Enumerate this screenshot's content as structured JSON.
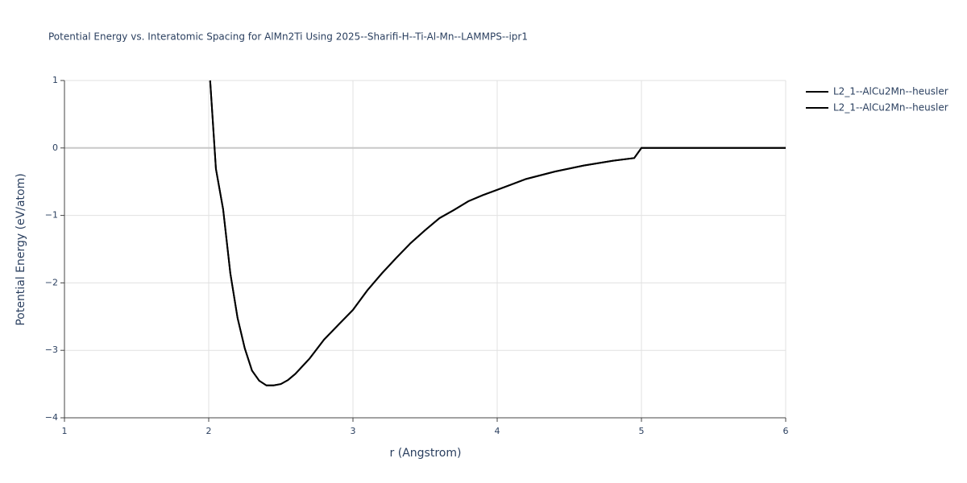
{
  "chart_data": {
    "type": "line",
    "title": "Potential Energy vs. Interatomic Spacing for AlMn2Ti Using 2025--Sharifi-H--Ti-Al-Mn--LAMMPS--ipr1",
    "x_label": "r (Angstrom)",
    "y_label": "Potential Energy (eV/atom)",
    "x": [
      2.01,
      2.05,
      2.1,
      2.15,
      2.2,
      2.25,
      2.3,
      2.35,
      2.4,
      2.45,
      2.5,
      2.55,
      2.6,
      2.7,
      2.8,
      2.9,
      3.0,
      3.1,
      3.2,
      3.3,
      3.4,
      3.5,
      3.6,
      3.7,
      3.8,
      3.9,
      4.0,
      4.2,
      4.4,
      4.6,
      4.8,
      4.95,
      5.0,
      6.0
    ],
    "series": [
      {
        "name": "L2_1--AlCu2Mn--heusler",
        "color": "#000000",
        "values": [
          1.0,
          -0.31,
          -0.91,
          -1.86,
          -2.52,
          -2.97,
          -3.3,
          -3.45,
          -3.52,
          -3.52,
          -3.5,
          -3.44,
          -3.35,
          -3.12,
          -2.84,
          -2.62,
          -2.4,
          -2.11,
          -1.86,
          -1.63,
          -1.41,
          -1.22,
          -1.04,
          -0.92,
          -0.79,
          -0.7,
          -0.62,
          -0.46,
          -0.35,
          -0.26,
          -0.19,
          -0.15,
          0,
          0
        ]
      },
      {
        "name": "L2_1--AlCu2Mn--heusler",
        "color": "#000000",
        "values": [
          1.0,
          -0.31,
          -0.91,
          -1.86,
          -2.52,
          -2.97,
          -3.3,
          -3.45,
          -3.52,
          -3.52,
          -3.5,
          -3.44,
          -3.35,
          -3.12,
          -2.84,
          -2.62,
          -2.4,
          -2.11,
          -1.86,
          -1.63,
          -1.41,
          -1.22,
          -1.04,
          -0.92,
          -0.79,
          -0.7,
          -0.62,
          -0.46,
          -0.35,
          -0.26,
          -0.19,
          -0.15,
          0,
          0
        ]
      }
    ],
    "xlim": [
      1,
      6
    ],
    "xticks": [
      1,
      2,
      3,
      4,
      5,
      6
    ],
    "ylim": [
      -4,
      1
    ],
    "yticks": [
      1,
      0,
      {
        "value": -1,
        "label": "−1"
      },
      {
        "value": -2,
        "label": "−2"
      },
      {
        "value": -3,
        "label": "−3"
      },
      {
        "value": -4,
        "label": "−4"
      }
    ],
    "grid": true,
    "legend": "top-right"
  }
}
